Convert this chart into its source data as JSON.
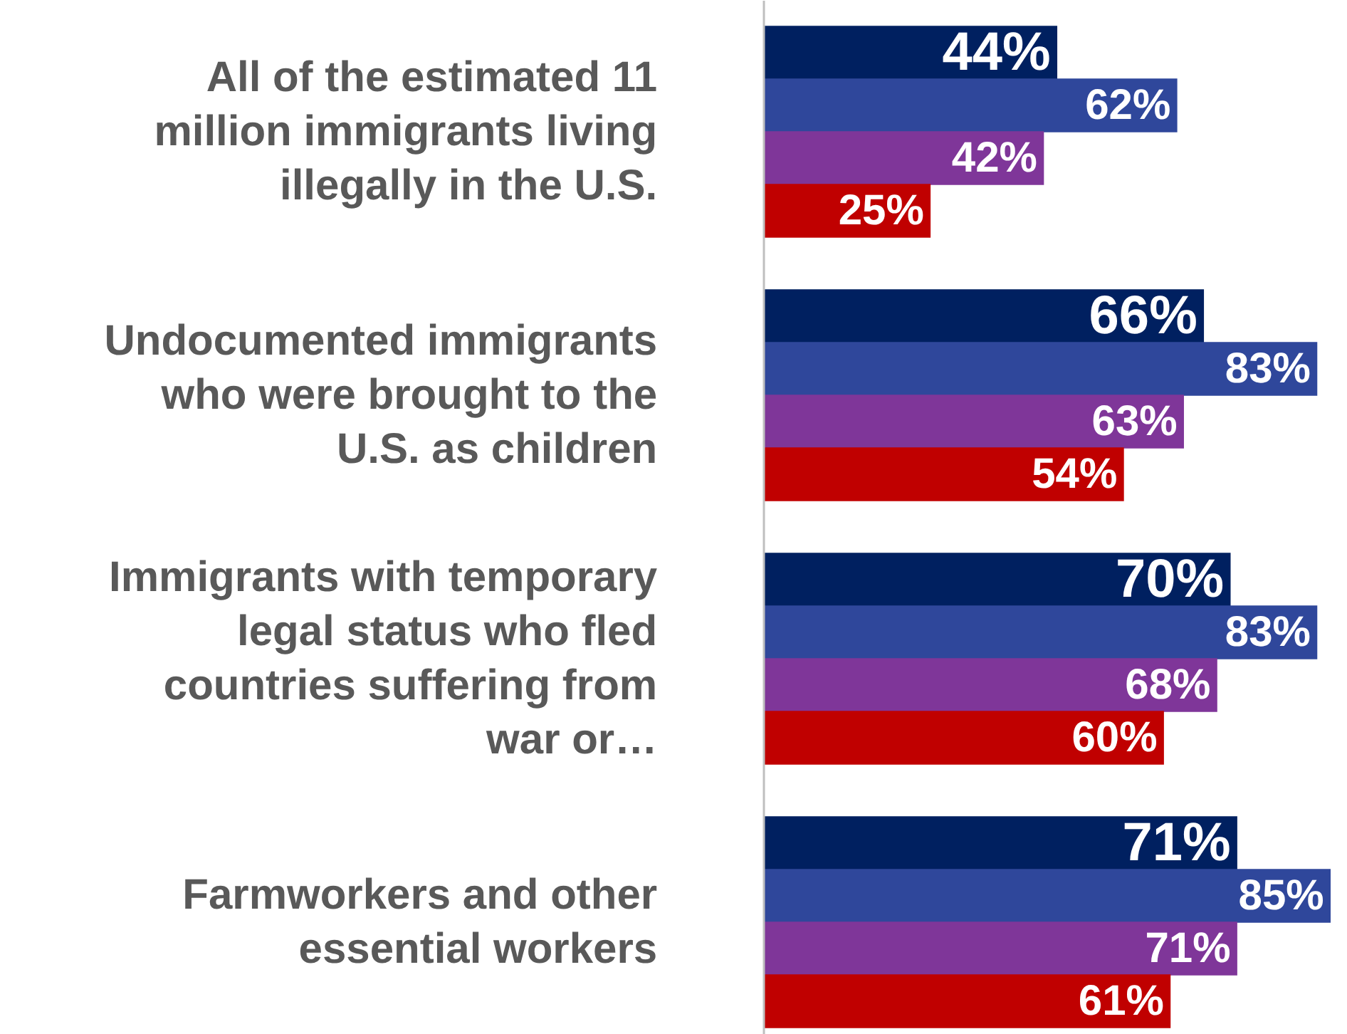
{
  "chart_data": {
    "type": "bar",
    "orientation": "horizontal",
    "grid": false,
    "categories": [
      "All of the estimated 11 million immigrants living illegally in the U.S.",
      "Undocumented immigrants who were brought to the U.S. as children",
      "Immigrants with temporary legal status who fled countries suffering from war or…",
      "Farmworkers and other essential workers"
    ],
    "series": [
      {
        "color": "#002060",
        "values": [
          44,
          66,
          70,
          71
        ],
        "value_labels": [
          "44%",
          "66%",
          "70%",
          "71%"
        ]
      },
      {
        "color": "#2f479b",
        "values": [
          62,
          83,
          83,
          85
        ],
        "value_labels": [
          "62%",
          "83%",
          "83%",
          "85%"
        ]
      },
      {
        "color": "#7f3699",
        "values": [
          42,
          63,
          68,
          71
        ],
        "value_labels": [
          "42%",
          "63%",
          "68%",
          "71%"
        ]
      },
      {
        "color": "#c00000",
        "values": [
          25,
          54,
          60,
          61
        ],
        "value_labels": [
          "25%",
          "54%",
          "60%",
          "61%"
        ]
      }
    ]
  }
}
